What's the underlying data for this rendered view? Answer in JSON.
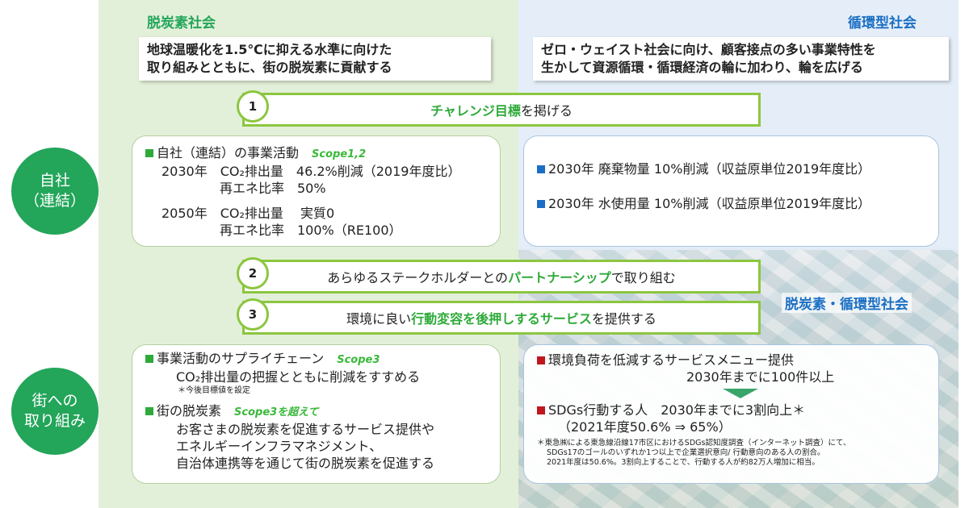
{
  "headers": {
    "left": "脱炭素社会",
    "right": "循環型社会",
    "combined": "脱炭素・循環型社会"
  },
  "intro": {
    "left": [
      "地球温暖化を1.5℃に抑える水準に向けた",
      "取り組みとともに、街の脱炭素に貢献する"
    ],
    "right": [
      "ゼロ・ウェイスト社会に向け、顧客接点の多い事業特性を",
      "生かして資源循環・循環経済の輪に加わり、輪を広げる"
    ]
  },
  "circles": {
    "own": [
      "自社",
      "（連結）"
    ],
    "town": [
      "街への",
      "取り組み"
    ]
  },
  "banners": [
    {
      "num": "1",
      "pre": "",
      "em": "チャレンジ目標",
      "post": "を掲げる"
    },
    {
      "num": "2",
      "pre": "あらゆるステークホルダーとの",
      "em": "パートナーシップ",
      "post": "で取り組む"
    },
    {
      "num": "3",
      "pre": "環境に良い",
      "em": "行動変容を後押しするサービス",
      "post": "を提供する"
    }
  ],
  "own_left": {
    "title": "自社（連結）の事業活動",
    "scope": "Scope1,2",
    "lines": [
      "2030年　CO₂排出量　46.2%削減（2019年度比）",
      "再エネ比率　50%",
      "2050年　CO₂排出量　 実質0",
      "再エネ比率　100%（RE100）"
    ]
  },
  "own_right": [
    "2030年 廃棄物量 10%削減（収益原単位2019年度比）",
    "2030年 水使用量 10%削減（収益原単位2019年度比）"
  ],
  "town_left": {
    "item1": {
      "title": "事業活動のサプライチェーン",
      "scope": "Scope3",
      "line": "CO₂排出量の把握とともに削減をすすめる",
      "note": "＊今後目標値を設定"
    },
    "item2": {
      "title": "街の脱炭素",
      "scope": "Scope3を超えて",
      "lines": [
        "お客さまの脱炭素を促進するサービス提供や",
        "エネルギーインフラマネジメント、",
        "自治体連携等を通じて街の脱炭素を促進する"
      ]
    }
  },
  "town_right": {
    "item1": {
      "title": "環境負荷を低減するサービスメニュー提供",
      "line": "2030年までに100件以上"
    },
    "item2": {
      "title": "SDGs行動する人　2030年までに3割向上＊",
      "line": "（2021年度50.6% ⇒ 65%）"
    },
    "notes": [
      "＊東急㈱による東急線沿線17市区におけるSDGs認知度調査（インターネット調査）にて、",
      "SDGs17のゴールのいずれか1つ以上で企業選択意向/ 行動意向のある人の割合。",
      "2021年度は50.6%。3割向上することで、行動する人が約82万人増加に相当。"
    ]
  },
  "colors": {
    "green": "#23a55a",
    "blue_header": "#1a6fc4",
    "bullet_green": "#2eaa3a",
    "bullet_blue": "#1a6fc4",
    "bullet_red": "#c0161f"
  }
}
